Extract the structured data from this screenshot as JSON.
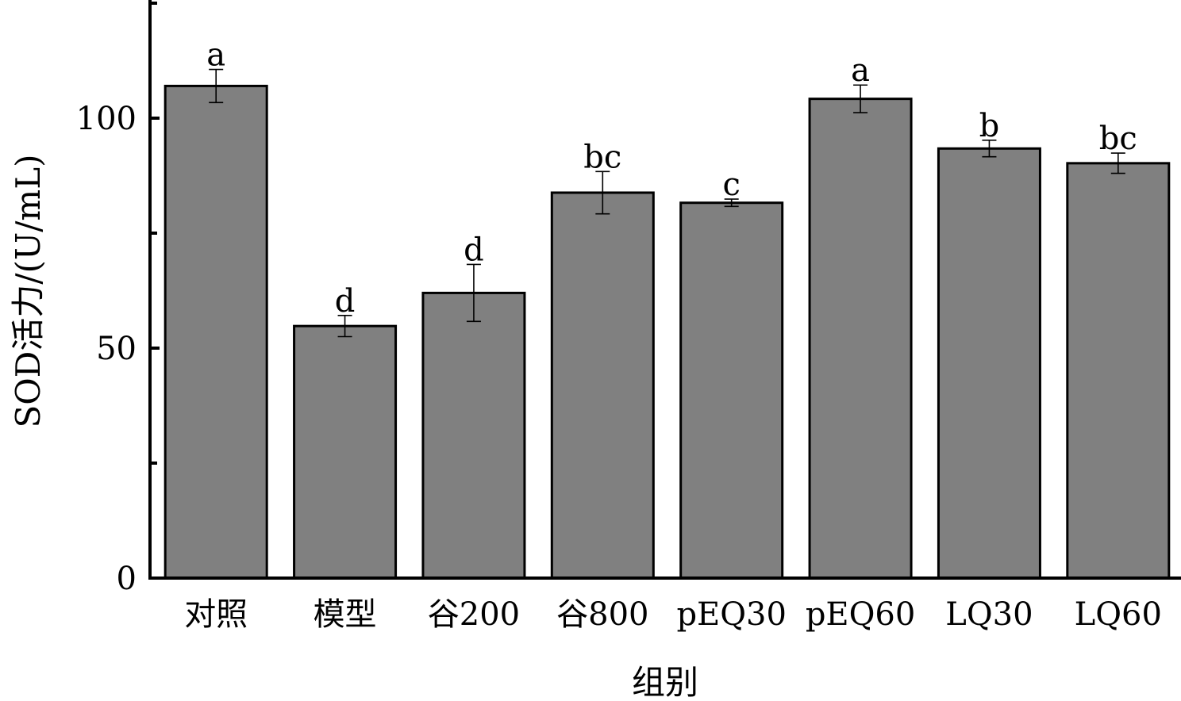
{
  "chart_data": {
    "type": "bar",
    "title": "",
    "xlabel": "组别",
    "ylabel": "SOD活力/(U/mL)",
    "ylim": [
      0,
      125
    ],
    "yticks": [
      0,
      50,
      100
    ],
    "yticks_minor": [
      25,
      75,
      125
    ],
    "categories": [
      "对照",
      "模型",
      "谷200",
      "谷800",
      "pEQ30",
      "pEQ60",
      "LQ30",
      "LQ60"
    ],
    "values": [
      107.0,
      54.8,
      62.0,
      83.8,
      81.6,
      104.2,
      93.4,
      90.2
    ],
    "errors": [
      3.6,
      2.3,
      6.2,
      4.6,
      0.8,
      3.0,
      1.8,
      2.2
    ],
    "significance": [
      "a",
      "d",
      "d",
      "bc",
      "c",
      "a",
      "b",
      "bc"
    ],
    "bar_color": "#808080",
    "grid": false,
    "legend": "none"
  }
}
